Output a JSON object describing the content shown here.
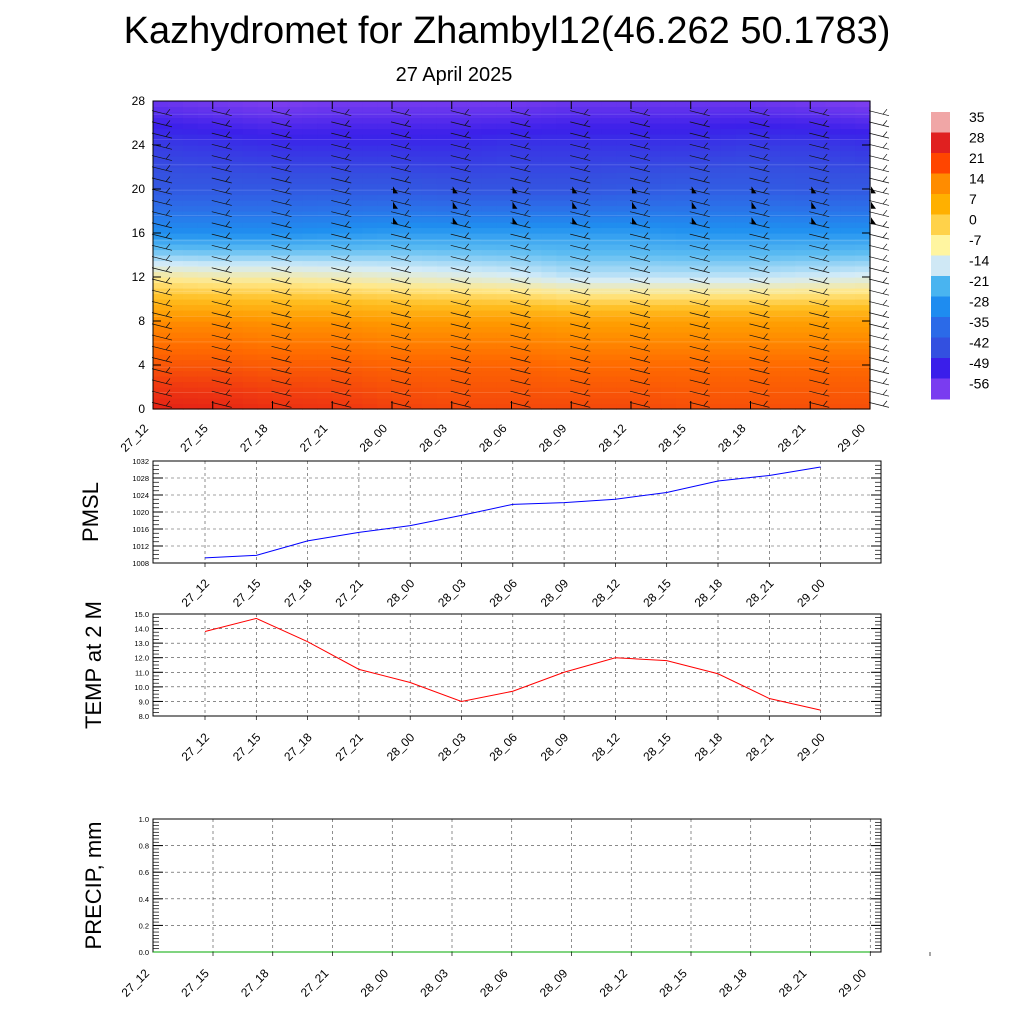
{
  "header": {
    "title": "Kazhydromet for Zhambyl12(46.262 50.1783)",
    "subtitle": "27 April 2025"
  },
  "chart_data": [
    {
      "id": "cross-section",
      "type": "heatmap",
      "title": "",
      "ylabel": "",
      "ylim": [
        0,
        28
      ],
      "yticks": [
        0,
        4,
        8,
        12,
        16,
        20,
        24,
        28
      ],
      "x_tick_labels": [
        "27_12",
        "27_15",
        "27_18",
        "27_21",
        "28_00",
        "28_03",
        "28_06",
        "28_09",
        "28_12",
        "28_15",
        "28_18",
        "28_21",
        "29_00"
      ],
      "colorbar": {
        "labels": [
          "35",
          "28",
          "21",
          "14",
          "7",
          "0",
          "-7",
          "-14",
          "-21",
          "-28",
          "-35",
          "-42",
          "-49",
          "-56"
        ],
        "colors": [
          "#f0a6a6",
          "#e02020",
          "#ff4500",
          "#ff8c00",
          "#ffb000",
          "#ffd24a",
          "#fff5a0",
          "#cfe8f5",
          "#49b4f0",
          "#1e8cf0",
          "#2b6ae8",
          "#3350e0",
          "#3a1eea",
          "#7a3cf0"
        ]
      },
      "temperature_levels": [
        0,
        4,
        8,
        12,
        16,
        20,
        24,
        28
      ],
      "temperature_field": [
        [
          26,
          25,
          23,
          22,
          20,
          19,
          19,
          19,
          19,
          18,
          18,
          18,
          18
        ],
        [
          17,
          17,
          16,
          16,
          15,
          15,
          15,
          14,
          14,
          14,
          14,
          14,
          14
        ],
        [
          9,
          9,
          8,
          8,
          7,
          7,
          7,
          6,
          6,
          6,
          6,
          6,
          6
        ],
        [
          -8,
          -9,
          -9,
          -10,
          -11,
          -12,
          -13,
          -15,
          -15,
          -15,
          -15,
          -14,
          -13
        ],
        [
          -28,
          -28,
          -28,
          -27,
          -26,
          -26,
          -26,
          -26,
          -26,
          -27,
          -27,
          -27,
          -27
        ],
        [
          -40,
          -40,
          -40,
          -40,
          -40,
          -41,
          -41,
          -41,
          -40,
          -39,
          -39,
          -40,
          -40
        ],
        [
          -45,
          -46,
          -47,
          -47,
          -47,
          -47,
          -46,
          -46,
          -46,
          -46,
          -45,
          -45,
          -46
        ],
        [
          -54,
          -55,
          -56,
          -55,
          -55,
          -55,
          -55,
          -54,
          -54,
          -54,
          -54,
          -55,
          -56
        ]
      ]
    },
    {
      "id": "pmsl",
      "type": "line",
      "title": "",
      "ylabel": "PMSL",
      "ylim": [
        1008,
        1032
      ],
      "yticks": [
        1008,
        1012,
        1016,
        1020,
        1024,
        1028,
        1032
      ],
      "ytick_labels": [
        "1008",
        "1012",
        "1016",
        "1020",
        "1024",
        "1028",
        "1032"
      ],
      "categories": [
        "27_12",
        "27_15",
        "27_18",
        "27_21",
        "28_00",
        "28_03",
        "28_06",
        "28_09",
        "28_12",
        "28_15",
        "28_18",
        "28_21",
        "29_00"
      ],
      "series": [
        {
          "color": "#0000ff",
          "values": [
            1009.2,
            1009.8,
            1013.2,
            1015.2,
            1016.8,
            1019.2,
            1021.8,
            1022.2,
            1023.0,
            1024.6,
            1027.3,
            1028.6,
            1030.6
          ]
        }
      ]
    },
    {
      "id": "temp2m",
      "type": "line",
      "title": "",
      "ylabel": "TEMP at 2 M",
      "ylim": [
        8.0,
        15.0
      ],
      "yticks": [
        8.0,
        9.0,
        10.0,
        11.0,
        12.0,
        13.0,
        14.0,
        15.0
      ],
      "ytick_labels": [
        "8.0",
        "9.0",
        "10.0",
        "11.0",
        "12.0",
        "13.0",
        "14.0",
        "15.0"
      ],
      "categories": [
        "27_12",
        "27_15",
        "27_18",
        "27_21",
        "28_00",
        "28_03",
        "28_06",
        "28_09",
        "28_12",
        "28_15",
        "28_18",
        "28_21",
        "29_00"
      ],
      "series": [
        {
          "color": "#ff0000",
          "values": [
            13.8,
            14.7,
            13.1,
            11.2,
            10.3,
            9.0,
            9.7,
            11.0,
            12.0,
            11.8,
            10.9,
            9.2,
            8.4
          ]
        }
      ]
    },
    {
      "id": "precip",
      "type": "line",
      "title": "",
      "ylabel": "PRECIP, mm",
      "ylim": [
        0.0,
        1.0
      ],
      "yticks": [
        0.0,
        0.2,
        0.4,
        0.6,
        0.8,
        1.0
      ],
      "ytick_labels": [
        "0.0",
        "0.2",
        "0.4",
        "0.6",
        "0.8",
        "1.0"
      ],
      "categories": [
        "27_12",
        "27_15",
        "27_18",
        "27_21",
        "28_00",
        "28_03",
        "28_06",
        "28_09",
        "28_12",
        "28_15",
        "28_18",
        "28_21",
        "29_00"
      ],
      "series": [
        {
          "color": "#00aa00",
          "values": [
            0,
            0,
            0,
            0,
            0,
            0,
            0,
            0,
            0,
            0,
            0,
            0,
            0
          ]
        }
      ]
    }
  ]
}
